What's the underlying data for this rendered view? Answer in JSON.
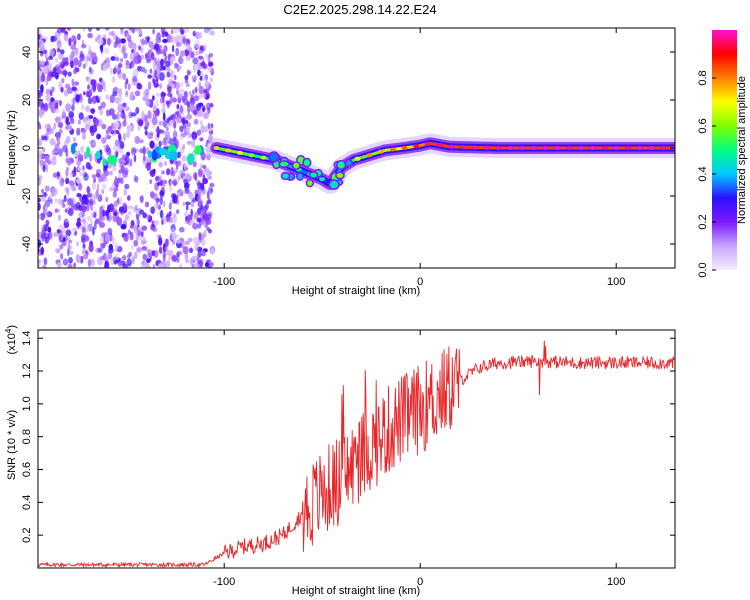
{
  "title": "C2E2.2025.298.14.22.E24",
  "chart_data": [
    {
      "type": "heatmap",
      "name": "spectrogram",
      "xlabel": "Height of straight line (km)",
      "ylabel": "Frequency (Hz)",
      "xlim": [
        -195,
        130
      ],
      "ylim": [
        -50,
        50
      ],
      "xticks": [
        -100,
        0,
        100
      ],
      "yticks": [
        -40,
        -20,
        0,
        20,
        40
      ],
      "colorbar": {
        "label": "Normalized spectral amplitude",
        "range": [
          0,
          1
        ],
        "ticks": [
          0.0,
          0.2,
          0.4,
          0.6,
          0.8
        ],
        "colors": [
          "#f4eeff",
          "#c9a6ff",
          "#7a1aff",
          "#2a10ff",
          "#00c8ff",
          "#00ff80",
          "#80ff00",
          "#ffff00",
          "#ff8000",
          "#ff0000",
          "#ff10d0"
        ]
      },
      "noise_region_x": [
        -195,
        -106
      ],
      "ridge": [
        {
          "x": -104,
          "y": 0,
          "a": 0.55
        },
        {
          "x": -98,
          "y": -1,
          "a": 0.6
        },
        {
          "x": -92,
          "y": -2,
          "a": 0.6
        },
        {
          "x": -86,
          "y": -3,
          "a": 0.5
        },
        {
          "x": -80,
          "y": -4,
          "a": 0.45
        },
        {
          "x": -74,
          "y": -5,
          "a": 0.45
        },
        {
          "x": -68,
          "y": -7,
          "a": 0.4
        },
        {
          "x": -62,
          "y": -9,
          "a": 0.35
        },
        {
          "x": -56,
          "y": -11,
          "a": 0.35
        },
        {
          "x": -50,
          "y": -13,
          "a": 0.3
        },
        {
          "x": -46,
          "y": -15,
          "a": 0.25
        },
        {
          "x": -40,
          "y": -8,
          "a": 0.45
        },
        {
          "x": -34,
          "y": -5,
          "a": 0.55
        },
        {
          "x": -26,
          "y": -3,
          "a": 0.6
        },
        {
          "x": -18,
          "y": -1,
          "a": 0.65
        },
        {
          "x": -8,
          "y": 0,
          "a": 0.7
        },
        {
          "x": 0,
          "y": 1,
          "a": 0.8
        },
        {
          "x": 5,
          "y": 2,
          "a": 0.85
        },
        {
          "x": 15,
          "y": 0.5,
          "a": 0.85
        },
        {
          "x": 40,
          "y": 0,
          "a": 0.85
        },
        {
          "x": 80,
          "y": 0,
          "a": 0.85
        },
        {
          "x": 130,
          "y": 0,
          "a": 0.85
        }
      ]
    },
    {
      "type": "line",
      "name": "snr",
      "xlabel": "Height of straight line (km)",
      "ylabel": "SNR (10 * v/v)",
      "scale_label": "(x10",
      "scale_exponent": "4",
      "xlim": [
        -195,
        130
      ],
      "ylim": [
        0,
        1.45
      ],
      "xticks": [
        -100,
        0,
        100
      ],
      "yticks": [
        0.2,
        0.4,
        0.6,
        0.8,
        1.0,
        1.2,
        1.4
      ],
      "line_color": "#e8262a",
      "envelope": {
        "x": [
          -195,
          -110,
          -100,
          -90,
          -80,
          -70,
          -60,
          -50,
          -40,
          -30,
          -20,
          -10,
          0,
          10,
          20,
          30,
          40,
          60,
          80,
          100,
          130
        ],
        "y": [
          0.02,
          0.02,
          0.09,
          0.13,
          0.15,
          0.2,
          0.33,
          0.45,
          0.55,
          0.68,
          0.8,
          0.9,
          0.97,
          1.05,
          1.14,
          1.22,
          1.25,
          1.26,
          1.25,
          1.25,
          1.25
        ]
      }
    }
  ]
}
